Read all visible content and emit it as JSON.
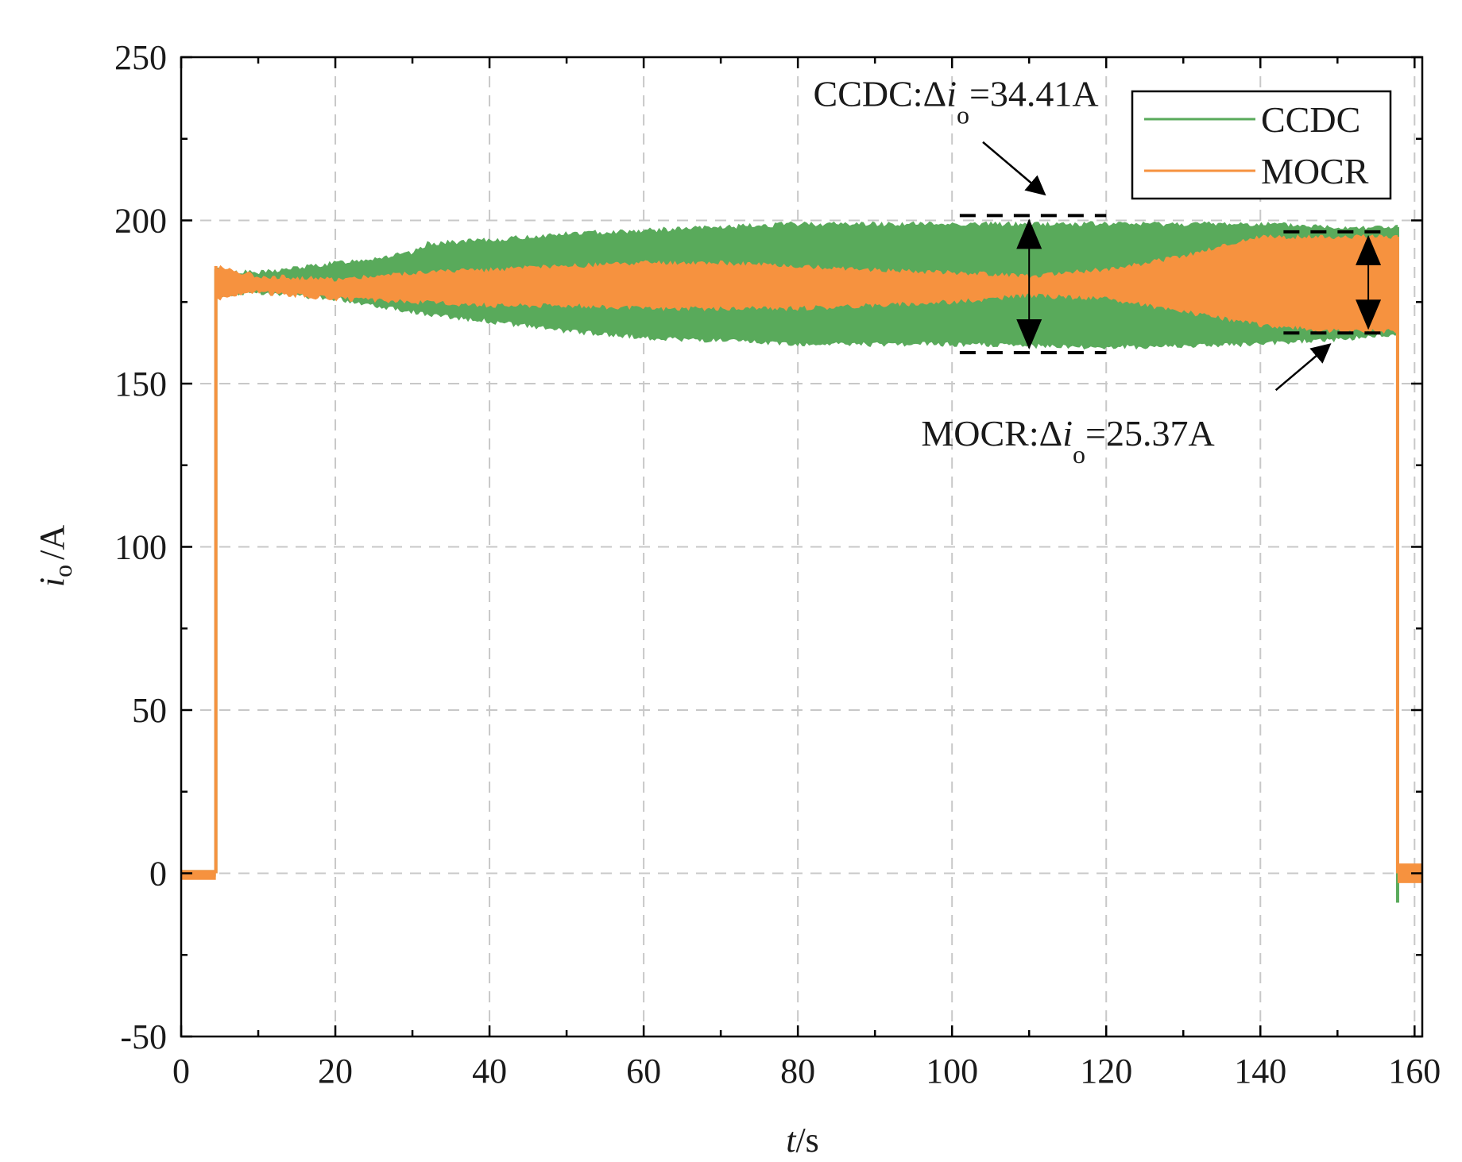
{
  "chart_data": {
    "type": "area",
    "title": "",
    "xlabel": {
      "italic": "t",
      "rest": "/s"
    },
    "ylabel": {
      "italic": "i",
      "sub": "o",
      "rest": "/A"
    },
    "xlim": [
      0,
      161
    ],
    "ylim": [
      -50,
      250
    ],
    "xticks": [
      0,
      20,
      40,
      60,
      80,
      100,
      120,
      140,
      160
    ],
    "yticks": [
      -50,
      0,
      50,
      100,
      150,
      200,
      250
    ],
    "grid": true,
    "legend_position": "top-right",
    "colors": {
      "CCDC": "#59aa5b",
      "MOCR": "#f6923f",
      "axis": "#000000",
      "grid": "#c8c8c8"
    },
    "series": [
      {
        "name": "CCDC",
        "start": 4.5,
        "end": 157.8,
        "idle_band": [
          -1,
          1
        ],
        "end_dip": -9,
        "band": {
          "t": [
            4.5,
            10,
            20,
            30,
            32,
            40,
            50,
            60,
            70,
            80,
            90,
            100,
            110,
            120,
            130,
            140,
            150,
            157.8
          ],
          "upper": [
            185,
            184,
            187,
            190,
            193,
            194,
            196,
            197,
            198,
            199,
            199,
            199,
            199,
            199,
            199,
            199,
            198,
            198
          ],
          "lower": [
            177,
            178,
            176,
            172,
            171,
            169,
            166,
            164,
            163,
            162,
            162,
            162,
            161.5,
            161,
            161.5,
            162,
            163.5,
            165
          ]
        }
      },
      {
        "name": "MOCR",
        "start": 4.5,
        "end": 157.8,
        "idle_band": [
          -2,
          1
        ],
        "end_band": [
          -3,
          3
        ],
        "band": {
          "t": [
            4.5,
            10,
            20,
            30,
            40,
            50,
            60,
            70,
            80,
            90,
            100,
            110,
            120,
            130,
            140,
            150,
            157.8
          ],
          "upper": [
            186,
            183,
            182,
            184,
            185,
            186,
            187,
            187,
            186,
            185,
            184,
            183,
            185,
            189,
            195,
            195,
            195
          ],
          "lower": [
            176,
            178,
            176,
            175,
            174,
            174,
            173,
            173,
            173,
            174,
            175,
            177,
            176,
            172,
            168,
            166,
            166
          ]
        }
      }
    ],
    "annotations": [
      {
        "id": "ccdc",
        "prefix": "CCDC:Δ",
        "italic": "i",
        "sub": "o",
        "value": "=34.41A",
        "x": 110,
        "upper": 201.5,
        "lower": 159.5,
        "span": [
          101,
          120
        ],
        "label_x": 82,
        "label_y": 235,
        "arrow_from": [
          104,
          224
        ],
        "arrow_to": [
          112,
          208
        ]
      },
      {
        "id": "mocr",
        "prefix": "MOCR:Δ",
        "italic": "i",
        "sub": "o",
        "value": "=25.37A",
        "x": 154,
        "upper": 196.5,
        "lower": 165.5,
        "span": [
          143,
          157
        ],
        "label_x": 96,
        "label_y": 131,
        "arrow_from": [
          142,
          148
        ],
        "arrow_to": [
          149,
          162
        ]
      }
    ]
  }
}
